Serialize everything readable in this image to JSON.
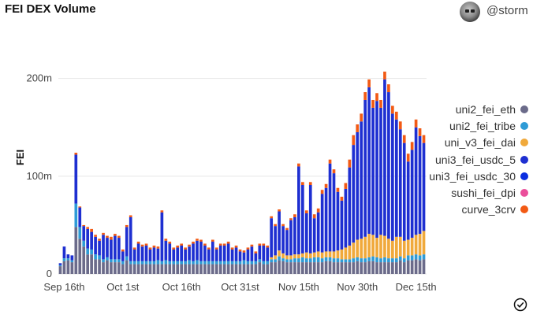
{
  "header": {
    "title": "FEI DEX Volume",
    "user_handle": "@storm",
    "avatar_icon": "skull-avatar-icon",
    "check_icon": "check-circle-icon"
  },
  "chart_data": {
    "type": "bar",
    "stacked": true,
    "title": "FEI DEX Volume",
    "xlabel": "",
    "ylabel": "FEI",
    "ylim": [
      0,
      240000000
    ],
    "y_ticks": [
      0,
      100000000,
      200000000
    ],
    "y_tick_labels": [
      "0",
      "100m",
      "200m"
    ],
    "x_tick_labels": [
      "Sep 16th",
      "Oct 1st",
      "Oct 16th",
      "Oct 31st",
      "Nov 15th",
      "Nov 30th",
      "Dec 15th"
    ],
    "x_tick_positions": [
      1,
      16,
      31,
      46,
      61,
      76,
      91
    ],
    "grid": true,
    "legend_placement": "right",
    "dates_start": "Sep 15th",
    "num_days": 94,
    "series": [
      {
        "name": "uni2_fei_eth",
        "color": "#6b6b8a",
        "values": [
          8,
          13,
          14,
          12,
          48,
          36,
          28,
          20,
          20,
          15,
          15,
          12,
          14,
          12,
          12,
          12,
          10,
          14,
          10,
          10,
          10,
          10,
          10,
          10,
          10,
          10,
          10,
          10,
          10,
          10,
          10,
          10,
          10,
          10,
          10,
          10,
          10,
          10,
          10,
          10,
          10,
          10,
          10,
          10,
          10,
          10,
          10,
          10,
          10,
          10,
          10,
          12,
          10,
          10,
          12,
          12,
          14,
          13,
          12,
          12,
          12,
          12,
          12,
          12,
          12,
          12,
          12,
          12,
          13,
          13,
          12,
          12,
          12,
          12,
          12,
          12,
          13,
          12,
          12,
          13,
          13,
          12,
          12,
          12,
          12,
          12,
          12,
          14,
          12,
          14,
          14,
          15,
          14,
          15
        ]
      },
      {
        "name": "uni2_fei_tribe",
        "color": "#2e9bd6",
        "values": [
          1,
          3,
          2,
          2,
          24,
          12,
          6,
          6,
          5,
          5,
          4,
          3,
          3,
          3,
          3,
          3,
          3,
          4,
          3,
          3,
          3,
          3,
          3,
          3,
          3,
          4,
          3,
          4,
          3,
          3,
          3,
          3,
          3,
          4,
          3,
          4,
          3,
          3,
          3,
          3,
          3,
          3,
          3,
          3,
          3,
          3,
          3,
          4,
          3,
          3,
          3,
          3,
          3,
          3,
          3,
          3,
          4,
          3,
          3,
          3,
          4,
          4,
          5,
          4,
          4,
          5,
          5,
          4,
          4,
          4,
          4,
          4,
          3,
          3,
          3,
          4,
          4,
          4,
          4,
          4,
          5,
          5,
          4,
          5,
          4,
          4,
          4,
          4,
          4,
          5,
          5,
          5,
          5,
          5
        ]
      },
      {
        "name": "uni_v3_fei_dai",
        "color": "#f0a93b",
        "values": [
          0,
          0,
          0,
          0,
          0,
          0,
          0,
          0,
          0,
          0,
          0,
          0,
          0,
          0,
          0,
          0,
          0,
          0,
          0,
          0,
          0,
          0,
          0,
          0,
          0,
          0,
          0,
          0,
          0,
          0,
          0,
          0,
          0,
          0,
          0,
          0,
          0,
          0,
          0,
          0,
          0,
          0,
          0,
          0,
          0,
          0,
          0,
          0,
          0,
          0,
          0,
          0,
          0,
          0,
          2,
          4,
          6,
          5,
          4,
          4,
          4,
          4,
          4,
          6,
          5,
          5,
          6,
          6,
          6,
          6,
          7,
          8,
          10,
          12,
          14,
          16,
          18,
          20,
          22,
          24,
          22,
          20,
          24,
          22,
          20,
          18,
          22,
          20,
          18,
          16,
          18,
          20,
          22,
          24
        ]
      },
      {
        "name": "uni3_fei_usdc_5",
        "color": "#1e2fd1",
        "values": [
          2,
          12,
          4,
          5,
          50,
          20,
          15,
          20,
          18,
          18,
          15,
          25,
          20,
          20,
          24,
          22,
          10,
          30,
          45,
          12,
          18,
          15,
          16,
          12,
          14,
          12,
          50,
          20,
          18,
          12,
          14,
          16,
          12,
          14,
          18,
          20,
          20,
          16,
          12,
          20,
          12,
          16,
          16,
          18,
          12,
          14,
          10,
          8,
          12,
          15,
          8,
          14,
          16,
          14,
          40,
          30,
          40,
          28,
          26,
          36,
          38,
          90,
          70,
          40,
          70,
          35,
          40,
          60,
          65,
          90,
          80,
          60,
          50,
          60,
          80,
          100,
          110,
          120,
          140,
          150,
          130,
          140,
          130,
          160,
          150,
          130,
          120,
          110,
          100,
          80,
          90,
          110,
          100,
          90
        ]
      },
      {
        "name": "uni3_fei_usdc_30",
        "color": "#0a2ee0",
        "values": [
          0,
          0,
          0,
          0,
          0,
          0,
          0,
          0,
          0,
          0,
          0,
          0,
          0,
          0,
          0,
          0,
          0,
          0,
          0,
          0,
          0,
          0,
          0,
          0,
          0,
          0,
          0,
          0,
          0,
          0,
          0,
          0,
          0,
          0,
          0,
          0,
          0,
          0,
          0,
          0,
          0,
          0,
          0,
          0,
          0,
          0,
          0,
          0,
          0,
          0,
          0,
          0,
          0,
          0,
          0,
          0,
          0,
          0,
          0,
          0,
          0,
          0,
          0,
          0,
          0,
          0,
          0,
          0,
          0,
          0,
          0,
          0,
          0,
          0,
          0,
          0,
          0,
          0,
          0,
          0,
          0,
          0,
          0,
          0,
          0,
          0,
          0,
          0,
          0,
          0,
          0,
          0,
          0,
          0
        ]
      },
      {
        "name": "sushi_fei_dpi",
        "color": "#ea4f9b",
        "values": [
          0,
          0,
          0,
          0,
          0,
          0,
          0,
          0,
          0,
          0,
          0,
          0,
          0,
          0,
          0,
          0,
          0,
          0,
          0,
          0,
          0,
          0,
          0,
          0,
          0,
          0,
          0,
          0,
          0,
          0,
          0,
          0,
          0,
          0,
          0,
          0,
          0,
          0,
          0,
          0,
          0,
          0,
          0,
          0,
          0,
          0,
          0,
          0,
          0,
          0,
          0,
          0,
          0,
          0,
          0,
          0,
          0,
          0,
          0,
          0,
          0,
          0,
          0,
          0,
          0,
          0,
          0,
          0,
          0,
          0,
          0,
          0,
          0,
          0,
          0,
          0,
          0,
          0,
          0,
          0,
          0,
          0,
          0,
          0,
          0,
          0,
          0,
          0,
          0,
          0,
          0,
          0,
          0,
          0
        ]
      },
      {
        "name": "curve_3crv",
        "color": "#f25a14",
        "values": [
          0,
          0,
          0,
          0,
          2,
          1,
          1,
          2,
          3,
          2,
          2,
          2,
          2,
          3,
          2,
          2,
          2,
          2,
          2,
          2,
          2,
          2,
          2,
          2,
          2,
          2,
          2,
          2,
          2,
          2,
          2,
          2,
          2,
          2,
          2,
          2,
          2,
          2,
          2,
          2,
          2,
          2,
          2,
          2,
          2,
          2,
          2,
          2,
          2,
          2,
          2,
          2,
          2,
          2,
          2,
          2,
          2,
          2,
          2,
          2,
          3,
          3,
          3,
          3,
          3,
          4,
          4,
          4,
          4,
          4,
          4,
          4,
          4,
          6,
          8,
          10,
          8,
          8,
          8,
          8,
          8,
          8,
          8,
          8,
          8,
          8,
          8,
          8,
          8,
          8,
          8,
          8,
          8,
          8
        ]
      }
    ]
  },
  "legend": [
    {
      "label": "uni2_fei_eth",
      "color": "#6b6b8a"
    },
    {
      "label": "uni2_fei_tribe",
      "color": "#2e9bd6"
    },
    {
      "label": "uni_v3_fei_dai",
      "color": "#f0a93b"
    },
    {
      "label": "uni3_fei_usdc_5",
      "color": "#1e2fd1"
    },
    {
      "label": "uni3_fei_usdc_30",
      "color": "#0a2ee0"
    },
    {
      "label": "sushi_fei_dpi",
      "color": "#ea4f9b"
    },
    {
      "label": "curve_3crv",
      "color": "#f25a14"
    }
  ]
}
